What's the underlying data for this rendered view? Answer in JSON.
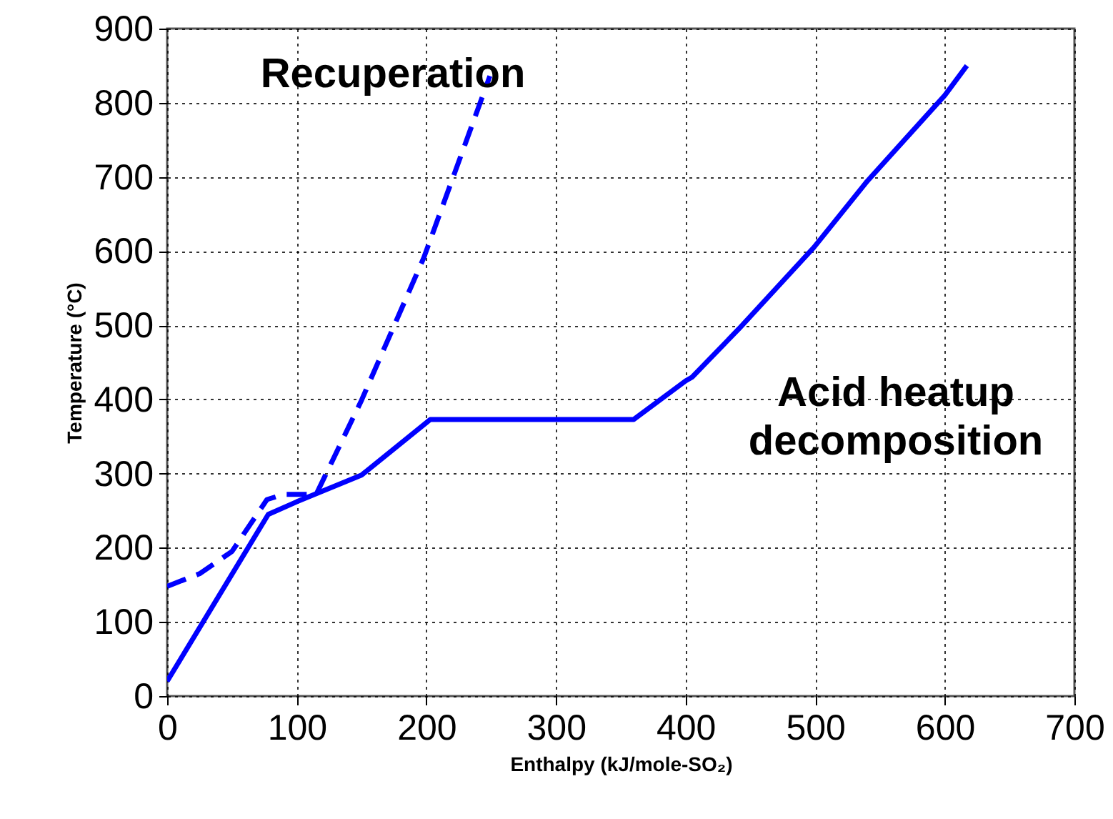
{
  "chart_data": {
    "type": "line",
    "xlabel": "Enthalpy (kJ/mole-SO₂)",
    "ylabel": "Temperature (°C)",
    "xlim": [
      0,
      700
    ],
    "xticks": [
      0,
      100,
      200,
      300,
      400,
      500,
      600,
      700
    ],
    "ylim": [
      0,
      900
    ],
    "yticks": [
      0,
      100,
      200,
      300,
      400,
      500,
      600,
      700,
      800,
      900
    ],
    "grid": true,
    "series": [
      {
        "color": "#0000ff",
        "line_style": "solid",
        "x": [
          0,
          78,
          100,
          150,
          203,
          360,
          400,
          405,
          441,
          499,
          540,
          600,
          617
        ],
        "values": [
          20,
          245,
          262,
          298,
          373,
          373,
          425,
          430,
          495,
          605,
          694,
          810,
          850
        ]
      },
      {
        "color": "#0000ff",
        "line_style": "dashed",
        "x": [
          0,
          25,
          50,
          77,
          90,
          115,
          150,
          198,
          249
        ],
        "values": [
          148,
          165,
          195,
          265,
          272,
          272,
          399,
          591,
          836
        ]
      }
    ],
    "annotations": [
      "Recuperation",
      "Acid heatup\ndecomposition"
    ]
  }
}
